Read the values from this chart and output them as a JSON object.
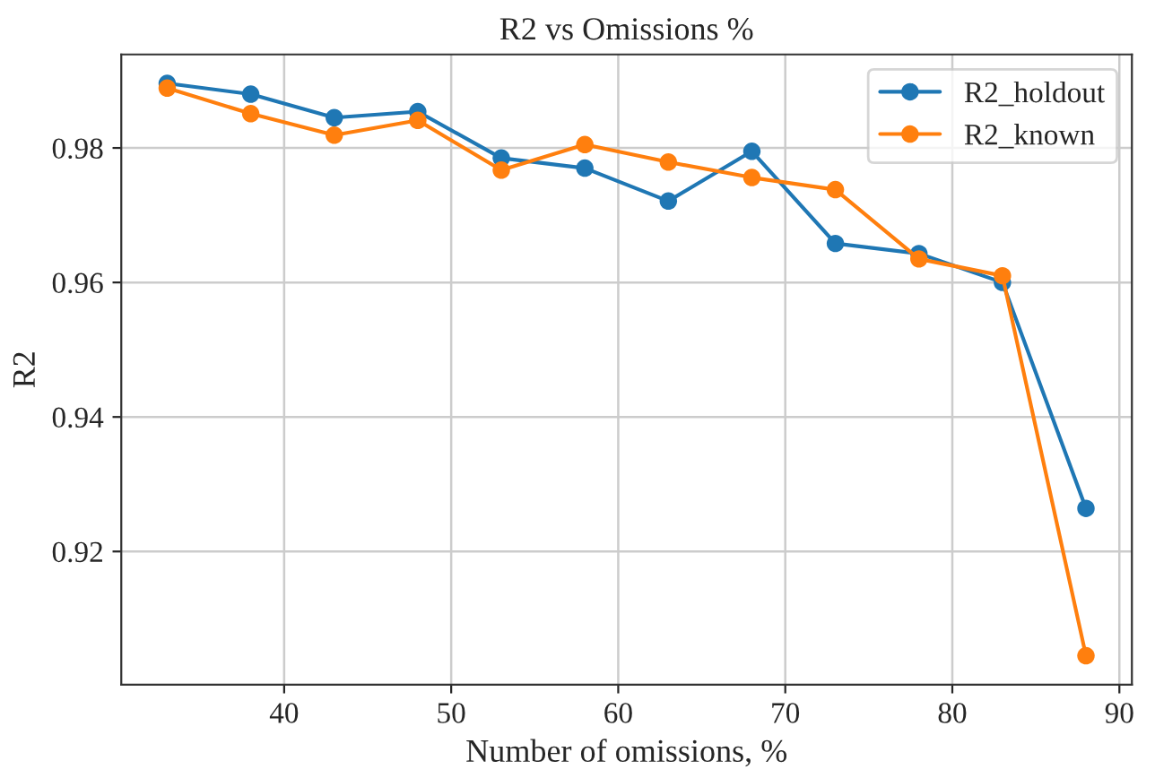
{
  "chart_data": {
    "type": "line",
    "title": "R2 vs Omissions %",
    "xlabel": "Number of omissions, %",
    "ylabel": "R2",
    "x": [
      33,
      38,
      43,
      48,
      53,
      58,
      63,
      68,
      73,
      78,
      83,
      88
    ],
    "series": [
      {
        "name": "R2_holdout",
        "color": "#1f77b4",
        "values": [
          0.9896,
          0.988,
          0.9845,
          0.9854,
          0.9785,
          0.977,
          0.9721,
          0.9795,
          0.9658,
          0.9643,
          0.96,
          0.9264
        ]
      },
      {
        "name": "R2_known",
        "color": "#ff7f0e",
        "values": [
          0.9889,
          0.9851,
          0.9819,
          0.9841,
          0.9767,
          0.9805,
          0.9779,
          0.9756,
          0.9738,
          0.9635,
          0.961,
          0.9045
        ]
      }
    ],
    "xlim": [
      30.25,
      90.75
    ],
    "xticks": [
      40,
      50,
      60,
      70,
      80,
      90
    ],
    "ylim": [
      0.9002,
      0.9939
    ],
    "yticks": [
      0.92,
      0.94,
      0.96,
      0.98
    ],
    "grid": true,
    "legend": "top right",
    "marker": "circle",
    "line_style": "solid"
  }
}
